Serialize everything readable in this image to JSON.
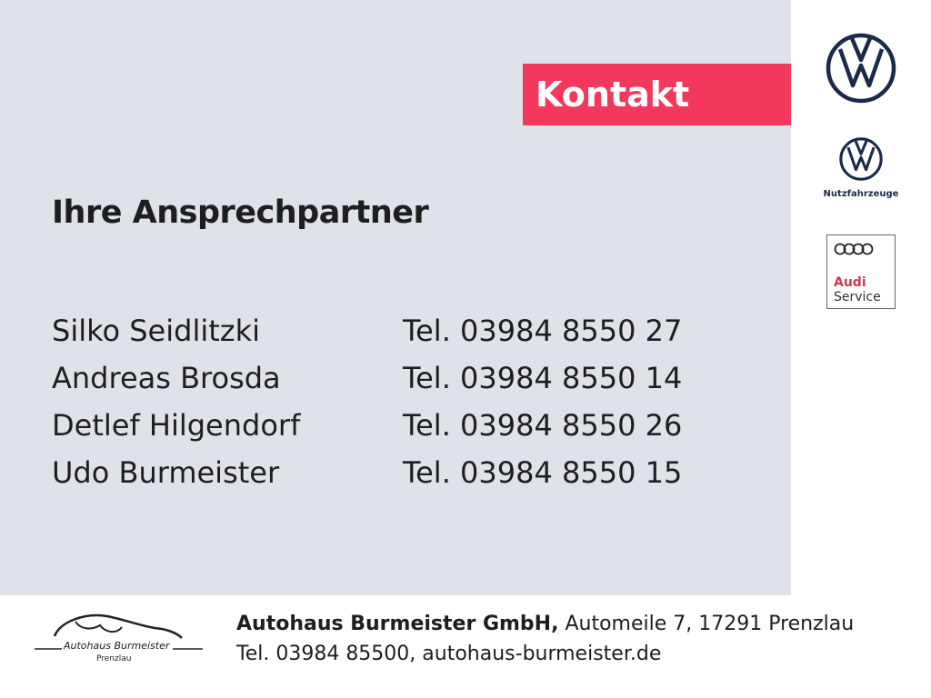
{
  "kontakt_label": "Kontakt",
  "heading": "Ihre Ansprechpartner",
  "contacts": [
    {
      "name": "Silko Seidlitzki",
      "tel": "Tel. 03984 8550 27"
    },
    {
      "name": "Andreas Brosda",
      "tel": "Tel. 03984 8550 14"
    },
    {
      "name": "Detlef Hilgendorf",
      "tel": "Tel. 03984 8550 26"
    },
    {
      "name": "Udo Burmeister",
      "tel": "Tel. 03984 8550 15"
    }
  ],
  "logos": {
    "vw_nutzfahrzeuge": "Nutzfahrzeuge",
    "audi_brand": "Audi",
    "audi_service": "Service",
    "dealer_name": "Autohaus Burmeister",
    "dealer_city": "Prenzlau"
  },
  "footer": {
    "company": "Autohaus Burmeister GmbH,",
    "address": " Automeile 7, 17291 Prenzlau",
    "contact": "Tel. 03984 85500, autohaus-burmeister.de"
  },
  "colors": {
    "accent": "#f2385c",
    "panel": "#dfe3e9",
    "vw_blue": "#1b2a48"
  }
}
